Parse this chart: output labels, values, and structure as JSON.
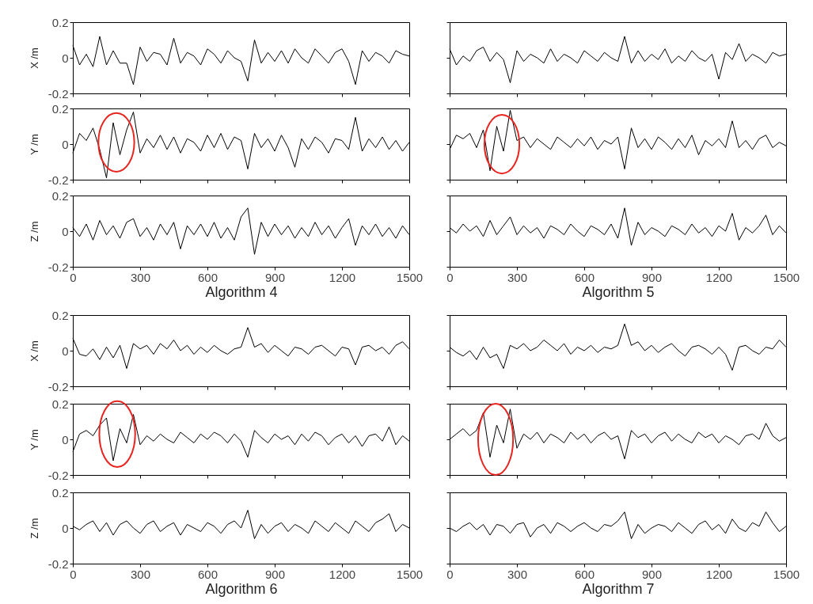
{
  "chart_data": [
    {
      "type": "line",
      "ylabel": "X /m",
      "color": "#000000",
      "marker": "none",
      "x": [
        0,
        30,
        60,
        90,
        120,
        150,
        180,
        210,
        240,
        270,
        300,
        330,
        360,
        390,
        420,
        450,
        480,
        510,
        540,
        570,
        600,
        630,
        660,
        690,
        720,
        750,
        780,
        810,
        840,
        870,
        900,
        930,
        960,
        990,
        1020,
        1050,
        1080,
        1110,
        1140,
        1170,
        1200,
        1230,
        1260,
        1290,
        1320,
        1350,
        1380,
        1410,
        1440,
        1470,
        1500
      ],
      "values": [
        0.07,
        -0.04,
        0.02,
        -0.05,
        0.12,
        -0.04,
        0.04,
        -0.03,
        -0.03,
        -0.15,
        0.06,
        -0.02,
        0.03,
        0.02,
        -0.04,
        0.11,
        -0.03,
        0.03,
        0.01,
        -0.04,
        0.05,
        0.02,
        -0.03,
        0.04,
        0.0,
        -0.02,
        -0.13,
        0.1,
        -0.03,
        0.03,
        -0.02,
        0.04,
        -0.03,
        0.05,
        0.0,
        -0.03,
        0.05,
        0.01,
        -0.03,
        0.03,
        0.05,
        -0.02,
        -0.15,
        0.04,
        -0.02,
        0.03,
        0.01,
        -0.03,
        0.04,
        0.02,
        0.01
      ],
      "xlim": [
        0,
        1500
      ],
      "ylim": [
        -0.2,
        0.2
      ],
      "xticks": [
        0,
        300,
        600,
        900,
        1200,
        1500
      ],
      "yticks": [
        0.2,
        0,
        -0.2
      ],
      "tick_labels": "y"
    },
    {
      "type": "line",
      "ylabel": "Y /m",
      "color": "#000000",
      "marker": "none",
      "x": [
        0,
        30,
        60,
        90,
        120,
        150,
        180,
        210,
        240,
        270,
        300,
        330,
        360,
        390,
        420,
        450,
        480,
        510,
        540,
        570,
        600,
        630,
        660,
        690,
        720,
        750,
        780,
        810,
        840,
        870,
        900,
        930,
        960,
        990,
        1020,
        1050,
        1080,
        1110,
        1140,
        1170,
        1200,
        1230,
        1260,
        1290,
        1320,
        1350,
        1380,
        1410,
        1440,
        1470,
        1500
      ],
      "values": [
        -0.05,
        0.06,
        0.02,
        0.09,
        -0.03,
        -0.19,
        0.12,
        -0.06,
        0.08,
        0.18,
        -0.05,
        0.03,
        -0.02,
        0.05,
        -0.03,
        0.04,
        -0.05,
        0.03,
        0.01,
        -0.04,
        0.05,
        -0.02,
        0.06,
        -0.03,
        0.04,
        0.02,
        -0.14,
        0.06,
        -0.02,
        0.03,
        -0.04,
        0.05,
        -0.02,
        -0.13,
        0.03,
        -0.03,
        0.04,
        0.01,
        -0.05,
        0.03,
        0.02,
        -0.03,
        0.15,
        -0.04,
        0.03,
        -0.02,
        0.04,
        -0.03,
        0.02,
        -0.04,
        0.01
      ],
      "xlim": [
        0,
        1500
      ],
      "ylim": [
        -0.2,
        0.2
      ],
      "xticks": [
        0,
        300,
        600,
        900,
        1200,
        1500
      ],
      "yticks": [
        0.2,
        0,
        -0.2
      ],
      "tick_labels": "y"
    },
    {
      "type": "line",
      "ylabel": "Z /m",
      "xlabel": "Algorithm 4",
      "color": "#000000",
      "marker": "none",
      "x": [
        0,
        30,
        60,
        90,
        120,
        150,
        180,
        210,
        240,
        270,
        300,
        330,
        360,
        390,
        420,
        450,
        480,
        510,
        540,
        570,
        600,
        630,
        660,
        690,
        720,
        750,
        780,
        810,
        840,
        870,
        900,
        930,
        960,
        990,
        1020,
        1050,
        1080,
        1110,
        1140,
        1170,
        1200,
        1230,
        1260,
        1290,
        1320,
        1350,
        1380,
        1410,
        1440,
        1470,
        1500
      ],
      "values": [
        0.02,
        -0.03,
        0.04,
        -0.05,
        0.06,
        -0.02,
        0.03,
        -0.04,
        0.05,
        0.07,
        -0.03,
        0.02,
        -0.05,
        0.04,
        -0.02,
        0.05,
        -0.1,
        0.03,
        -0.02,
        0.04,
        -0.03,
        0.05,
        -0.04,
        0.02,
        -0.05,
        0.08,
        0.13,
        -0.13,
        0.05,
        -0.03,
        0.04,
        -0.02,
        0.03,
        -0.04,
        0.02,
        -0.03,
        0.05,
        -0.02,
        0.03,
        -0.04,
        0.02,
        0.07,
        -0.08,
        0.03,
        -0.02,
        0.04,
        -0.03,
        0.02,
        -0.04,
        0.03,
        -0.02
      ],
      "xlim": [
        0,
        1500
      ],
      "ylim": [
        -0.2,
        0.2
      ],
      "xticks": [
        0,
        300,
        600,
        900,
        1200,
        1500
      ],
      "yticks": [
        0.2,
        0,
        -0.2
      ]
    },
    {
      "type": "line",
      "color": "#000000",
      "marker": "none",
      "x": [
        0,
        30,
        60,
        90,
        120,
        150,
        180,
        210,
        240,
        270,
        300,
        330,
        360,
        390,
        420,
        450,
        480,
        510,
        540,
        570,
        600,
        630,
        660,
        690,
        720,
        750,
        780,
        810,
        840,
        870,
        900,
        930,
        960,
        990,
        1020,
        1050,
        1080,
        1110,
        1140,
        1170,
        1200,
        1230,
        1260,
        1290,
        1320,
        1350,
        1380,
        1410,
        1440,
        1470,
        1500
      ],
      "values": [
        0.05,
        -0.04,
        0.01,
        -0.02,
        0.04,
        0.06,
        -0.02,
        0.03,
        -0.01,
        -0.14,
        0.04,
        -0.02,
        0.02,
        0.0,
        -0.03,
        0.05,
        -0.02,
        0.02,
        0.0,
        -0.03,
        0.04,
        0.01,
        -0.02,
        0.03,
        0.0,
        -0.02,
        0.12,
        -0.03,
        0.04,
        -0.02,
        0.02,
        -0.01,
        0.05,
        -0.03,
        0.01,
        -0.02,
        0.04,
        0.0,
        -0.02,
        0.02,
        -0.12,
        0.03,
        -0.01,
        0.08,
        -0.02,
        0.02,
        0.0,
        -0.03,
        0.03,
        0.01,
        0.02
      ],
      "xlim": [
        0,
        1500
      ],
      "ylim": [
        -0.2,
        0.2
      ],
      "xticks": [
        0,
        300,
        600,
        900,
        1200,
        1500
      ],
      "yticks": [
        0.2,
        0,
        -0.2
      ],
      "tick_labels": false
    },
    {
      "type": "line",
      "color": "#000000",
      "marker": "none",
      "x": [
        0,
        30,
        60,
        90,
        120,
        150,
        180,
        210,
        240,
        270,
        300,
        330,
        360,
        390,
        420,
        450,
        480,
        510,
        540,
        570,
        600,
        630,
        660,
        690,
        720,
        750,
        780,
        810,
        840,
        870,
        900,
        930,
        960,
        990,
        1020,
        1050,
        1080,
        1110,
        1140,
        1170,
        1200,
        1230,
        1260,
        1290,
        1320,
        1350,
        1380,
        1410,
        1440,
        1470,
        1500
      ],
      "values": [
        -0.03,
        0.05,
        0.03,
        0.06,
        -0.02,
        0.08,
        -0.15,
        0.1,
        -0.04,
        0.19,
        0.02,
        0.04,
        -0.02,
        0.03,
        0.0,
        -0.03,
        0.04,
        0.01,
        -0.02,
        0.03,
        -0.01,
        0.04,
        -0.03,
        0.02,
        0.0,
        0.04,
        -0.14,
        0.09,
        -0.02,
        0.03,
        -0.03,
        0.04,
        0.01,
        -0.03,
        0.03,
        -0.02,
        0.05,
        -0.06,
        0.02,
        -0.01,
        0.03,
        -0.02,
        0.13,
        -0.02,
        0.02,
        -0.03,
        0.03,
        0.05,
        -0.02,
        0.01,
        -0.01
      ],
      "xlim": [
        0,
        1500
      ],
      "ylim": [
        -0.2,
        0.2
      ],
      "xticks": [
        0,
        300,
        600,
        900,
        1200,
        1500
      ],
      "yticks": [
        0.2,
        0,
        -0.2
      ],
      "tick_labels": false
    },
    {
      "type": "line",
      "xlabel": "Algorithm 5",
      "color": "#000000",
      "marker": "none",
      "x": [
        0,
        30,
        60,
        90,
        120,
        150,
        180,
        210,
        240,
        270,
        300,
        330,
        360,
        390,
        420,
        450,
        480,
        510,
        540,
        570,
        600,
        630,
        660,
        690,
        720,
        750,
        780,
        810,
        840,
        870,
        900,
        930,
        960,
        990,
        1020,
        1050,
        1080,
        1110,
        1140,
        1170,
        1200,
        1230,
        1260,
        1290,
        1320,
        1350,
        1380,
        1410,
        1440,
        1470,
        1500
      ],
      "values": [
        0.02,
        -0.01,
        0.04,
        0.0,
        0.03,
        -0.03,
        0.06,
        -0.02,
        0.03,
        0.08,
        -0.02,
        0.03,
        -0.01,
        0.02,
        -0.04,
        0.03,
        0.01,
        -0.02,
        0.04,
        0.0,
        -0.03,
        0.03,
        0.01,
        -0.02,
        0.04,
        -0.04,
        0.13,
        -0.08,
        0.05,
        -0.02,
        0.02,
        0.0,
        -0.03,
        0.03,
        0.01,
        -0.02,
        0.04,
        -0.01,
        0.02,
        -0.03,
        0.03,
        0.0,
        0.1,
        -0.05,
        0.02,
        -0.01,
        0.03,
        0.09,
        -0.02,
        0.03,
        -0.01
      ],
      "xlim": [
        0,
        1500
      ],
      "ylim": [
        -0.2,
        0.2
      ],
      "xticks": [
        0,
        300,
        600,
        900,
        1200,
        1500
      ],
      "yticks": [
        0.2,
        0,
        -0.2
      ],
      "tick_labels": "x"
    },
    {
      "type": "line",
      "ylabel": "X /m",
      "color": "#000000",
      "marker": "none",
      "x": [
        0,
        30,
        60,
        90,
        120,
        150,
        180,
        210,
        240,
        270,
        300,
        330,
        360,
        390,
        420,
        450,
        480,
        510,
        540,
        570,
        600,
        630,
        660,
        690,
        720,
        750,
        780,
        810,
        840,
        870,
        900,
        930,
        960,
        990,
        1020,
        1050,
        1080,
        1110,
        1140,
        1170,
        1200,
        1230,
        1260,
        1290,
        1320,
        1350,
        1380,
        1410,
        1440,
        1470,
        1500
      ],
      "values": [
        0.07,
        -0.02,
        -0.03,
        0.01,
        -0.05,
        0.02,
        -0.04,
        0.03,
        -0.1,
        0.04,
        0.01,
        0.03,
        -0.02,
        0.04,
        0.01,
        0.06,
        0.0,
        0.03,
        -0.02,
        0.02,
        -0.01,
        0.03,
        0.0,
        -0.02,
        0.01,
        0.02,
        0.13,
        0.02,
        0.04,
        -0.01,
        0.03,
        0.0,
        -0.03,
        0.02,
        0.01,
        -0.02,
        0.02,
        0.03,
        0.0,
        -0.03,
        0.02,
        0.01,
        -0.08,
        0.02,
        0.03,
        0.0,
        0.02,
        -0.02,
        0.03,
        0.05,
        0.01
      ],
      "xlim": [
        0,
        1500
      ],
      "ylim": [
        -0.2,
        0.2
      ],
      "xticks": [
        0,
        300,
        600,
        900,
        1200,
        1500
      ],
      "yticks": [
        0.2,
        0,
        -0.2
      ],
      "tick_labels": "y"
    },
    {
      "type": "line",
      "ylabel": "Y /m",
      "color": "#000000",
      "marker": "none",
      "x": [
        0,
        30,
        60,
        90,
        120,
        150,
        180,
        210,
        240,
        270,
        300,
        330,
        360,
        390,
        420,
        450,
        480,
        510,
        540,
        570,
        600,
        630,
        660,
        690,
        720,
        750,
        780,
        810,
        840,
        870,
        900,
        930,
        960,
        990,
        1020,
        1050,
        1080,
        1110,
        1140,
        1170,
        1200,
        1230,
        1260,
        1290,
        1320,
        1350,
        1380,
        1410,
        1440,
        1470,
        1500
      ],
      "values": [
        -0.07,
        0.03,
        0.05,
        0.02,
        0.08,
        0.12,
        -0.12,
        0.06,
        -0.02,
        0.14,
        -0.03,
        0.02,
        -0.01,
        0.03,
        0.0,
        -0.02,
        0.04,
        0.01,
        -0.02,
        0.03,
        0.0,
        0.04,
        0.02,
        -0.02,
        0.03,
        -0.01,
        -0.1,
        0.05,
        0.01,
        -0.02,
        0.03,
        0.0,
        0.02,
        -0.03,
        0.03,
        -0.01,
        0.04,
        0.02,
        -0.03,
        0.01,
        0.03,
        -0.02,
        0.02,
        -0.04,
        0.02,
        0.03,
        -0.01,
        0.07,
        -0.03,
        0.02,
        -0.01
      ],
      "xlim": [
        0,
        1500
      ],
      "ylim": [
        -0.2,
        0.2
      ],
      "xticks": [
        0,
        300,
        600,
        900,
        1200,
        1500
      ],
      "yticks": [
        0.2,
        0,
        -0.2
      ],
      "tick_labels": "y"
    },
    {
      "type": "line",
      "ylabel": "Z /m",
      "xlabel": "Algorithm 6",
      "color": "#000000",
      "marker": "none",
      "x": [
        0,
        30,
        60,
        90,
        120,
        150,
        180,
        210,
        240,
        270,
        300,
        330,
        360,
        390,
        420,
        450,
        480,
        510,
        540,
        570,
        600,
        630,
        660,
        690,
        720,
        750,
        780,
        810,
        840,
        870,
        900,
        930,
        960,
        990,
        1020,
        1050,
        1080,
        1110,
        1140,
        1170,
        1200,
        1230,
        1260,
        1290,
        1320,
        1350,
        1380,
        1410,
        1440,
        1470,
        1500
      ],
      "values": [
        0.01,
        -0.01,
        0.02,
        0.04,
        -0.02,
        0.03,
        -0.04,
        0.02,
        0.04,
        0.0,
        -0.03,
        0.02,
        0.04,
        -0.02,
        0.01,
        0.03,
        -0.04,
        0.02,
        0.0,
        -0.02,
        0.03,
        0.01,
        -0.03,
        0.02,
        0.04,
        0.0,
        0.1,
        -0.06,
        0.02,
        -0.03,
        0.01,
        0.03,
        -0.02,
        0.02,
        0.0,
        -0.03,
        0.04,
        0.01,
        -0.02,
        0.03,
        0.0,
        -0.03,
        0.04,
        0.01,
        -0.02,
        0.03,
        0.05,
        0.08,
        -0.02,
        0.02,
        0.0
      ],
      "xlim": [
        0,
        1500
      ],
      "ylim": [
        -0.2,
        0.2
      ],
      "xticks": [
        0,
        300,
        600,
        900,
        1200,
        1500
      ],
      "yticks": [
        0.2,
        0,
        -0.2
      ]
    },
    {
      "type": "line",
      "color": "#000000",
      "marker": "none",
      "x": [
        0,
        30,
        60,
        90,
        120,
        150,
        180,
        210,
        240,
        270,
        300,
        330,
        360,
        390,
        420,
        450,
        480,
        510,
        540,
        570,
        600,
        630,
        660,
        690,
        720,
        750,
        780,
        810,
        840,
        870,
        900,
        930,
        960,
        990,
        1020,
        1050,
        1080,
        1110,
        1140,
        1170,
        1200,
        1230,
        1260,
        1290,
        1320,
        1350,
        1380,
        1410,
        1440,
        1470,
        1500
      ],
      "values": [
        0.02,
        -0.01,
        -0.03,
        0.0,
        -0.05,
        0.02,
        -0.04,
        -0.02,
        -0.1,
        0.03,
        0.01,
        0.04,
        0.0,
        0.02,
        0.06,
        0.03,
        0.0,
        0.04,
        -0.02,
        0.02,
        0.0,
        0.03,
        -0.01,
        0.02,
        0.01,
        0.03,
        0.15,
        0.03,
        0.05,
        0.0,
        0.03,
        -0.01,
        0.02,
        0.04,
        0.0,
        -0.03,
        0.02,
        0.03,
        0.01,
        -0.02,
        0.02,
        -0.02,
        -0.11,
        0.02,
        0.03,
        0.0,
        -0.02,
        0.02,
        0.01,
        0.06,
        0.02
      ],
      "xlim": [
        0,
        1500
      ],
      "ylim": [
        -0.2,
        0.2
      ],
      "xticks": [
        0,
        300,
        600,
        900,
        1200,
        1500
      ],
      "yticks": [
        0.2,
        0,
        -0.2
      ],
      "tick_labels": false
    },
    {
      "type": "line",
      "color": "#000000",
      "marker": "none",
      "x": [
        0,
        30,
        60,
        90,
        120,
        150,
        180,
        210,
        240,
        270,
        300,
        330,
        360,
        390,
        420,
        450,
        480,
        510,
        540,
        570,
        600,
        630,
        660,
        690,
        720,
        750,
        780,
        810,
        840,
        870,
        900,
        930,
        960,
        990,
        1020,
        1050,
        1080,
        1110,
        1140,
        1170,
        1200,
        1230,
        1260,
        1290,
        1320,
        1350,
        1380,
        1410,
        1440,
        1470,
        1500
      ],
      "values": [
        0.0,
        0.03,
        0.06,
        0.02,
        0.05,
        0.15,
        -0.1,
        0.08,
        -0.02,
        0.17,
        -0.05,
        0.03,
        0.0,
        0.04,
        -0.02,
        0.03,
        0.01,
        -0.02,
        0.04,
        0.0,
        0.03,
        -0.02,
        0.02,
        0.04,
        0.0,
        0.02,
        -0.11,
        0.05,
        0.01,
        0.03,
        -0.02,
        0.02,
        0.04,
        -0.01,
        0.03,
        0.0,
        -0.02,
        0.04,
        0.01,
        0.03,
        -0.02,
        0.02,
        0.0,
        -0.03,
        0.02,
        0.03,
        0.0,
        0.09,
        0.02,
        -0.01,
        0.01
      ],
      "xlim": [
        0,
        1500
      ],
      "ylim": [
        -0.2,
        0.2
      ],
      "xticks": [
        0,
        300,
        600,
        900,
        1200,
        1500
      ],
      "yticks": [
        0.2,
        0,
        -0.2
      ],
      "tick_labels": false
    },
    {
      "type": "line",
      "xlabel": "Algorithm 7",
      "color": "#000000",
      "marker": "none",
      "x": [
        0,
        30,
        60,
        90,
        120,
        150,
        180,
        210,
        240,
        270,
        300,
        330,
        360,
        390,
        420,
        450,
        480,
        510,
        540,
        570,
        600,
        630,
        660,
        690,
        720,
        750,
        780,
        810,
        840,
        870,
        900,
        930,
        960,
        990,
        1020,
        1050,
        1080,
        1110,
        1140,
        1170,
        1200,
        1230,
        1260,
        1290,
        1320,
        1350,
        1380,
        1410,
        1440,
        1470,
        1500
      ],
      "values": [
        0.0,
        -0.02,
        0.01,
        0.03,
        -0.01,
        0.02,
        -0.04,
        0.02,
        0.01,
        -0.03,
        0.02,
        0.03,
        -0.05,
        0.0,
        0.02,
        -0.03,
        0.03,
        0.01,
        -0.02,
        0.01,
        0.03,
        0.0,
        -0.02,
        0.02,
        0.01,
        0.04,
        0.09,
        -0.06,
        0.02,
        -0.03,
        0.0,
        0.02,
        0.01,
        -0.02,
        0.03,
        0.0,
        -0.03,
        0.02,
        0.04,
        -0.01,
        0.02,
        -0.03,
        0.05,
        0.0,
        -0.02,
        0.03,
        0.01,
        0.09,
        0.03,
        -0.02,
        0.01
      ],
      "xlim": [
        0,
        1500
      ],
      "ylim": [
        -0.2,
        0.2
      ],
      "xticks": [
        0,
        300,
        600,
        900,
        1200,
        1500
      ],
      "yticks": [
        0.2,
        0,
        -0.2
      ],
      "tick_labels": "x"
    }
  ]
}
